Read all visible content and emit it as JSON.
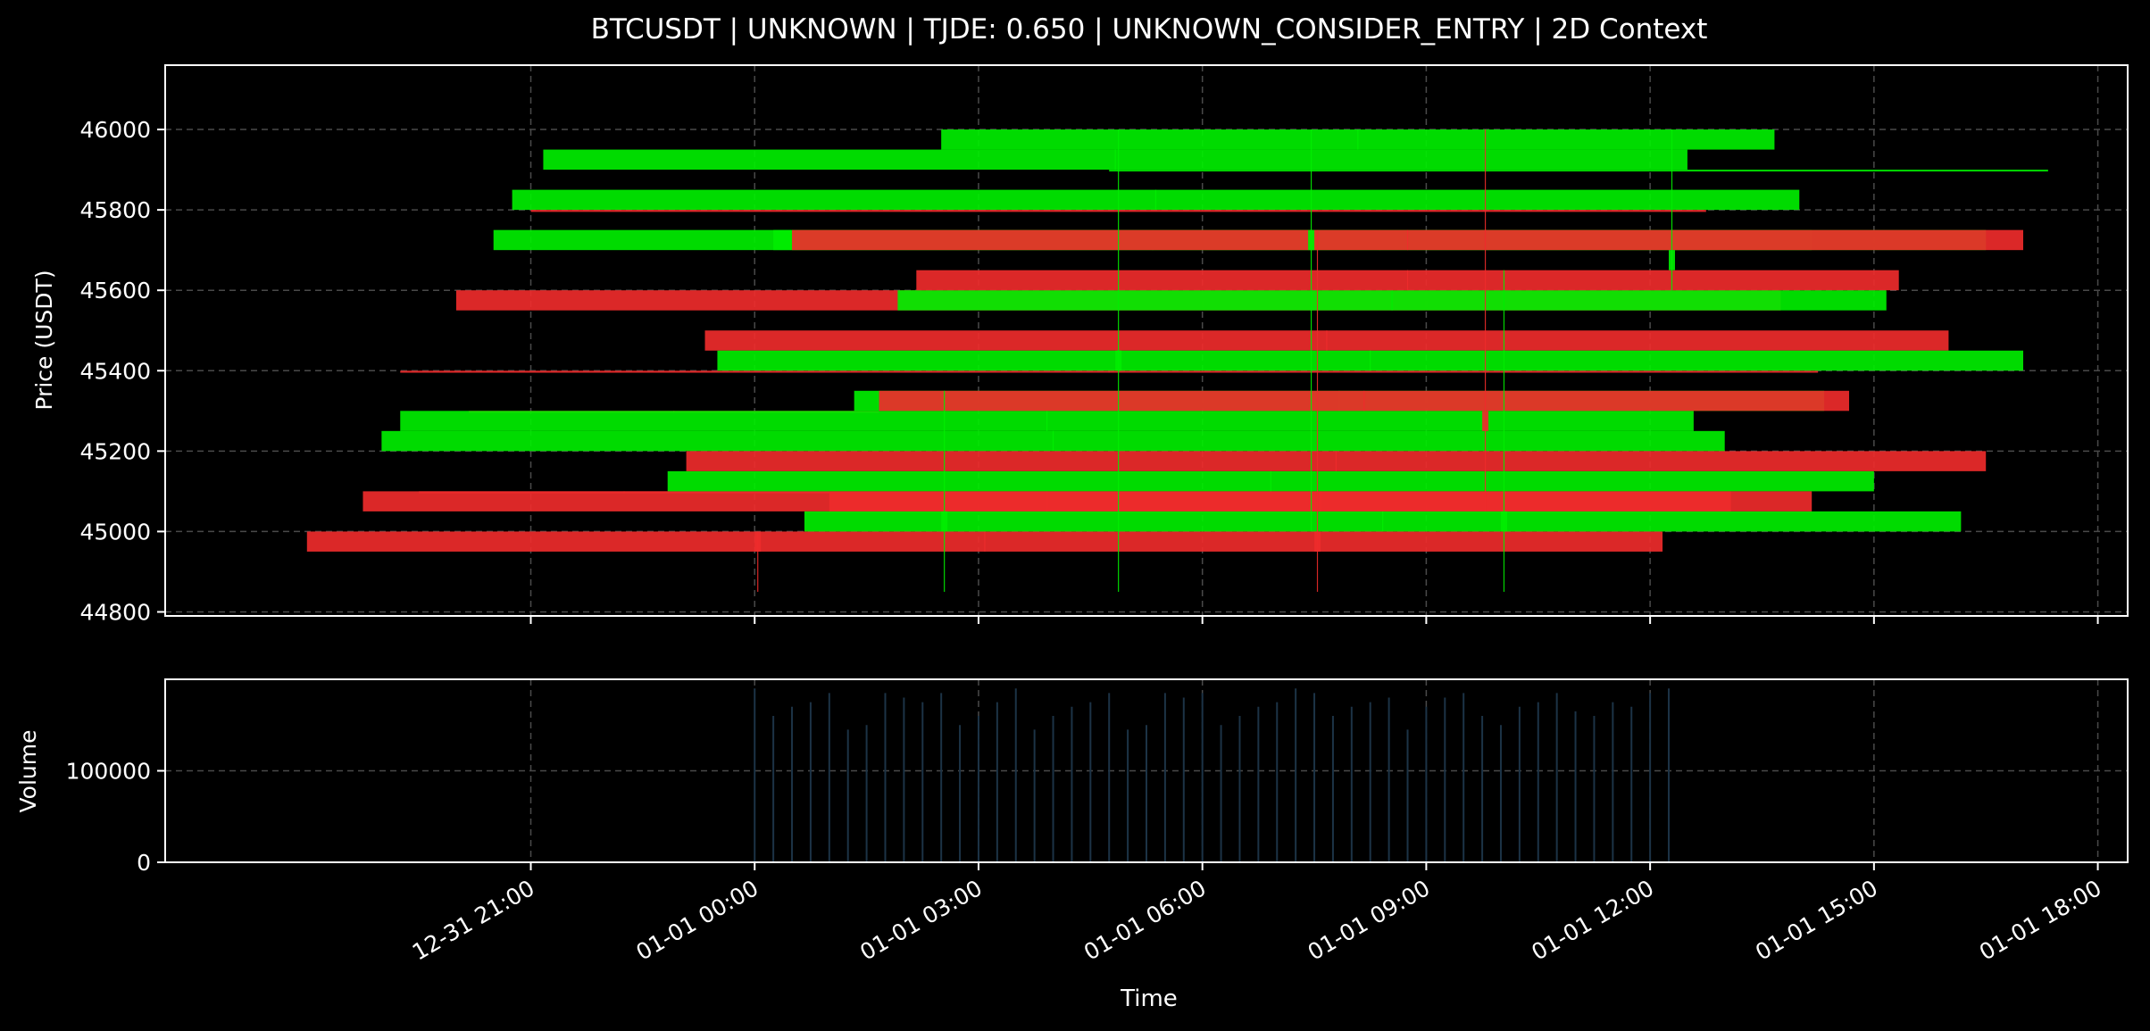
{
  "title": "BTCUSDT | UNKNOWN | TJDE: 0.650 | UNKNOWN_CONSIDER_ENTRY | 2D Context",
  "colors": {
    "background": "#000000",
    "bullish": "#00ee00",
    "bearish": "#ee2b2b",
    "volume": "#1c3346",
    "grid": "#4a4a4a",
    "text": "#ffffff"
  },
  "chart_data": [
    {
      "type": "candlestick",
      "title": "BTCUSDT | UNKNOWN | TJDE: 0.650 | UNKNOWN_CONSIDER_ENTRY | 2D Context",
      "ylabel": "Price (USDT)",
      "xlabel": "",
      "ylim": [
        44790,
        46160
      ],
      "yticks": [
        44800,
        45000,
        45200,
        45400,
        45600,
        45800,
        46000
      ],
      "grid": true,
      "bars": [
        {
          "start": "12-31 18:00",
          "end": "01-01 12:10",
          "open": 45000,
          "close": 44950,
          "high": 45000,
          "low": 44950
        },
        {
          "start": "12-31 20:10",
          "end": "01-01 01:40",
          "open": 45300,
          "close": 45295,
          "high": 45300,
          "low": 45295
        },
        {
          "start": "12-31 19:30",
          "end": "01-01 01:00",
          "open": 45100,
          "close": 45095,
          "high": 45100,
          "low": 45095
        },
        {
          "start": "12-31 18:45",
          "end": "01-01 13:05",
          "open": 45100,
          "close": 45050,
          "high": 45100,
          "low": 45050
        },
        {
          "start": "12-31 19:00",
          "end": "01-01 13:00",
          "open": 45200,
          "close": 45250,
          "high": 45250,
          "low": 45200
        },
        {
          "start": "12-31 19:15",
          "end": "01-01 14:15",
          "open": 45400,
          "close": 45395,
          "high": 45400,
          "low": 45395
        },
        {
          "start": "12-31 19:15",
          "end": "01-01 12:35",
          "open": 45250,
          "close": 45300,
          "high": 45300,
          "low": 45250
        },
        {
          "start": "12-31 20:00",
          "end": "01-01 13:45",
          "open": 45600,
          "close": 45550,
          "high": 45600,
          "low": 45550
        },
        {
          "start": "12-31 20:30",
          "end": "01-01 14:10",
          "open": 45700,
          "close": 45750,
          "high": 45750,
          "low": 45700
        },
        {
          "start": "12-31 20:45",
          "end": "01-01 14:00",
          "open": 45800,
          "close": 45850,
          "high": 45850,
          "low": 45800
        },
        {
          "start": "12-31 21:00",
          "end": "01-01 12:45",
          "open": 45800,
          "close": 45795,
          "high": 45800,
          "low": 45795
        },
        {
          "start": "12-31 21:10",
          "end": "01-01 12:30",
          "open": 45900,
          "close": 45950,
          "high": 45950,
          "low": 45900
        },
        {
          "start": "12-31 22:50",
          "end": "01-01 15:00",
          "open": 45100,
          "close": 45150,
          "high": 45150,
          "low": 45100
        },
        {
          "start": "12-31 23:05",
          "end": "01-01 16:30",
          "open": 45200,
          "close": 45150,
          "high": 45200,
          "low": 45150
        },
        {
          "start": "12-31 23:20",
          "end": "01-01 16:00",
          "open": 45500,
          "close": 45450,
          "high": 45500,
          "low": 45450
        },
        {
          "start": "12-31 23:30",
          "end": "01-01 17:00",
          "open": 45400,
          "close": 45450,
          "high": 45450,
          "low": 45400
        },
        {
          "start": "01-01 00:15",
          "end": "01-01 16:30",
          "open": 45700,
          "close": 45750,
          "high": 45750,
          "low": 45700
        },
        {
          "start": "01-01 00:30",
          "end": "01-01 17:00",
          "open": 45750,
          "close": 45700,
          "high": 45750,
          "low": 45700
        },
        {
          "start": "01-01 00:40",
          "end": "01-01 16:10",
          "open": 45000,
          "close": 45050,
          "high": 45050,
          "low": 45000
        },
        {
          "start": "01-01 01:00",
          "end": "01-01 14:10",
          "open": 45100,
          "close": 45050,
          "high": 45100,
          "low": 45050
        },
        {
          "start": "01-01 01:20",
          "end": "01-01 14:20",
          "open": 45300,
          "close": 45350,
          "high": 45350,
          "low": 45300
        },
        {
          "start": "01-01 01:40",
          "end": "01-01 14:40",
          "open": 45350,
          "close": 45300,
          "high": 45350,
          "low": 45300
        },
        {
          "start": "01-01 01:55",
          "end": "01-01 15:10",
          "open": 45550,
          "close": 45600,
          "high": 45600,
          "low": 45550
        },
        {
          "start": "01-01 02:10",
          "end": "01-01 15:20",
          "open": 45650,
          "close": 45600,
          "high": 45650,
          "low": 45600
        },
        {
          "start": "01-01 02:30",
          "end": "01-01 13:40",
          "open": 45950,
          "close": 46000,
          "high": 46000,
          "low": 45950
        },
        {
          "start": "01-01 04:45",
          "end": "01-01 17:20",
          "open": 45900,
          "close": 45900,
          "high": 45900,
          "low": 45900
        },
        {
          "start": "01-01 00:00",
          "end": "01-01 00:05",
          "open": 45000,
          "close": 44950,
          "high": 45000,
          "low": 44850
        },
        {
          "start": "01-01 02:30",
          "end": "01-01 02:35",
          "open": 45000,
          "close": 45050,
          "high": 45350,
          "low": 44850
        },
        {
          "start": "01-01 04:50",
          "end": "01-01 04:55",
          "open": 45400,
          "close": 45450,
          "high": 46000,
          "low": 44850
        },
        {
          "start": "01-01 07:25",
          "end": "01-01 07:30",
          "open": 45700,
          "close": 45750,
          "high": 46000,
          "low": 45000
        },
        {
          "start": "01-01 07:30",
          "end": "01-01 07:35",
          "open": 45000,
          "close": 44950,
          "high": 45750,
          "low": 44850
        },
        {
          "start": "01-01 09:45",
          "end": "01-01 09:50",
          "open": 45300,
          "close": 45250,
          "high": 46000,
          "low": 45050
        },
        {
          "start": "01-01 10:00",
          "end": "01-01 10:05",
          "open": 45000,
          "close": 45050,
          "high": 45650,
          "low": 44850
        },
        {
          "start": "01-01 12:15",
          "end": "01-01 12:20",
          "open": 45650,
          "close": 45700,
          "high": 46000,
          "low": 45600
        }
      ]
    },
    {
      "type": "bar",
      "ylabel": "Volume",
      "xlabel": "Time",
      "ylim": [
        0,
        200000
      ],
      "yticks": [
        0,
        100000
      ],
      "xticks": [
        "12-31 21:00",
        "01-01 00:00",
        "01-01 03:00",
        "01-01 06:00",
        "01-01 09:00",
        "01-01 12:00",
        "01-01 15:00",
        "01-01 18:00"
      ],
      "grid": true,
      "x": [
        "01-01 00:00",
        "01-01 00:15",
        "01-01 00:30",
        "01-01 00:45",
        "01-01 01:00",
        "01-01 01:15",
        "01-01 01:30",
        "01-01 01:45",
        "01-01 02:00",
        "01-01 02:15",
        "01-01 02:30",
        "01-01 02:45",
        "01-01 03:00",
        "01-01 03:15",
        "01-01 03:30",
        "01-01 03:45",
        "01-01 04:00",
        "01-01 04:15",
        "01-01 04:30",
        "01-01 04:45",
        "01-01 05:00",
        "01-01 05:15",
        "01-01 05:30",
        "01-01 05:45",
        "01-01 06:00",
        "01-01 06:15",
        "01-01 06:30",
        "01-01 06:45",
        "01-01 07:00",
        "01-01 07:15",
        "01-01 07:30",
        "01-01 07:45",
        "01-01 08:00",
        "01-01 08:15",
        "01-01 08:30",
        "01-01 08:45",
        "01-01 09:00",
        "01-01 09:15",
        "01-01 09:30",
        "01-01 09:45",
        "01-01 10:00",
        "01-01 10:15",
        "01-01 10:30",
        "01-01 10:45",
        "01-01 11:00",
        "01-01 11:15",
        "01-01 11:30",
        "01-01 11:45",
        "01-01 12:00",
        "01-01 12:15"
      ],
      "values": [
        190000,
        160000,
        170000,
        175000,
        185000,
        145000,
        150000,
        185000,
        180000,
        175000,
        185000,
        150000,
        160000,
        175000,
        190000,
        145000,
        160000,
        170000,
        175000,
        185000,
        145000,
        150000,
        185000,
        180000,
        185000,
        150000,
        160000,
        170000,
        175000,
        190000,
        185000,
        160000,
        170000,
        175000,
        180000,
        145000,
        170000,
        180000,
        185000,
        160000,
        150000,
        170000,
        175000,
        185000,
        165000,
        160000,
        175000,
        170000,
        185000,
        190000
      ]
    }
  ]
}
